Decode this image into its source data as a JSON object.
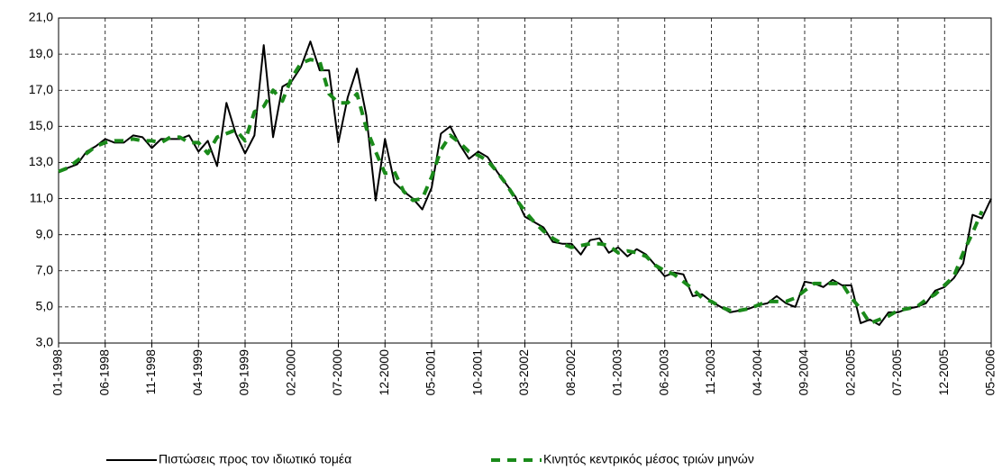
{
  "chart_data": {
    "type": "line",
    "categories": [
      "01-1998",
      null,
      null,
      null,
      null,
      "06-1998",
      null,
      null,
      null,
      null,
      "11-1998",
      null,
      null,
      null,
      null,
      "04-1999",
      null,
      null,
      null,
      null,
      "09-1999",
      null,
      null,
      null,
      null,
      "02-2000",
      null,
      null,
      null,
      null,
      "07-2000",
      null,
      null,
      null,
      null,
      "12-2000",
      null,
      null,
      null,
      null,
      "05-2001",
      null,
      null,
      null,
      null,
      "10-2001",
      null,
      null,
      null,
      null,
      "03-2002",
      null,
      null,
      null,
      null,
      "08-2002",
      null,
      null,
      null,
      null,
      "01-2003",
      null,
      null,
      null,
      null,
      "06-2003",
      null,
      null,
      null,
      null,
      "11-2003",
      null,
      null,
      null,
      null,
      "04-2004",
      null,
      null,
      null,
      null,
      "09-2004",
      null,
      null,
      null,
      null,
      "02-2005",
      null,
      null,
      null,
      null,
      "07-2005",
      null,
      null,
      null,
      null,
      "12-2005",
      null,
      null,
      null,
      null,
      "05-2006"
    ],
    "series": [
      {
        "name": "Πιστώσεις  προς τον ιδιωτικό τομέα",
        "color": "#000000",
        "dashed": false,
        "values": [
          12.5,
          12.7,
          12.9,
          13.6,
          13.9,
          14.3,
          14.1,
          14.1,
          14.5,
          14.4,
          13.8,
          14.3,
          14.3,
          14.3,
          14.5,
          13.6,
          14.2,
          12.8,
          16.3,
          14.6,
          13.5,
          14.5,
          19.5,
          14.4,
          17.2,
          17.5,
          18.3,
          19.7,
          18.1,
          18.1,
          14.1,
          16.6,
          18.2,
          15.6,
          10.9,
          14.3,
          11.9,
          11.4,
          11.0,
          10.4,
          11.6,
          14.6,
          15.0,
          14.0,
          13.2,
          13.6,
          13.3,
          12.5,
          11.8,
          11.1,
          10.0,
          9.7,
          9.4,
          8.6,
          8.5,
          8.5,
          7.9,
          8.7,
          8.8,
          8.0,
          8.3,
          7.8,
          8.2,
          7.9,
          7.3,
          6.7,
          6.9,
          6.8,
          5.6,
          5.7,
          5.3,
          5.0,
          4.7,
          4.8,
          4.9,
          5.1,
          5.2,
          5.6,
          5.2,
          5.0,
          6.4,
          6.3,
          6.1,
          6.5,
          6.2,
          6.2,
          4.1,
          4.3,
          4.0,
          4.7,
          4.7,
          4.9,
          5.0,
          5.2,
          5.9,
          6.1,
          6.6,
          7.4,
          10.1,
          9.9,
          11.0
        ]
      },
      {
        "name": "Κινητός κεντρικός μέσος τριών μηνών",
        "color": "#1a8a1a",
        "dashed": true,
        "values": [
          12.5,
          12.7,
          13.1,
          13.5,
          13.9,
          14.1,
          14.2,
          14.2,
          14.3,
          14.2,
          14.2,
          14.1,
          14.4,
          14.4,
          14.1,
          14.1,
          13.5,
          14.4,
          14.6,
          14.8,
          14.2,
          15.8,
          16.1,
          17.0,
          16.4,
          17.7,
          18.5,
          18.7,
          18.6,
          16.8,
          16.3,
          16.3,
          16.8,
          14.9,
          13.6,
          12.4,
          12.5,
          11.4,
          10.9,
          11.0,
          12.2,
          13.7,
          14.5,
          14.1,
          13.6,
          13.4,
          13.1,
          12.5,
          11.8,
          11.0,
          10.3,
          9.7,
          9.2,
          8.8,
          8.5,
          8.3,
          8.4,
          8.5,
          8.5,
          8.4,
          8.0,
          8.1,
          8.0,
          7.8,
          7.3,
          7.0,
          6.8,
          6.4,
          6.0,
          5.5,
          5.3,
          5.0,
          4.8,
          4.8,
          4.9,
          5.1,
          5.3,
          5.3,
          5.3,
          5.5,
          5.9,
          6.3,
          6.3,
          6.3,
          6.3,
          5.5,
          4.9,
          4.1,
          4.3,
          4.5,
          4.8,
          4.9,
          5.0,
          5.4,
          5.7,
          6.2,
          6.7,
          8.0,
          9.1,
          10.3,
          null
        ]
      }
    ],
    "ylim": [
      3,
      21
    ],
    "yticks": [
      {
        "value": 3,
        "label": "3,0"
      },
      {
        "value": 5,
        "label": "5,0"
      },
      {
        "value": 7,
        "label": "7,0"
      },
      {
        "value": 9,
        "label": "9,0"
      },
      {
        "value": 11,
        "label": "11,0"
      },
      {
        "value": 13,
        "label": "13,0"
      },
      {
        "value": 15,
        "label": "15,0"
      },
      {
        "value": 17,
        "label": "17,0"
      },
      {
        "value": 19,
        "label": "19,0"
      },
      {
        "value": 21,
        "label": "21,0"
      }
    ],
    "grid": true,
    "legend": "bottom"
  }
}
